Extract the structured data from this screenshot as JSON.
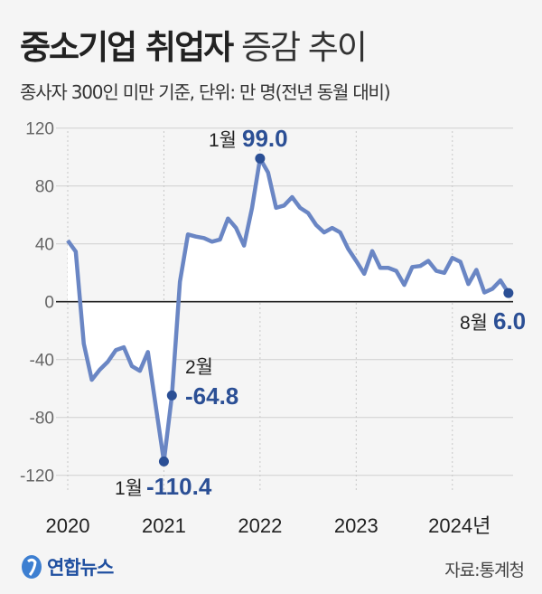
{
  "title_bold": "중소기업 취업자",
  "title_light": "증감 추이",
  "subtitle": "종사자 300인 미만 기준, 단위: 만 명(전년 동월 대비)",
  "source": "자료:통계청",
  "logo_text": "연합뉴스",
  "colors": {
    "line": "#6a86c4",
    "highlight": "#2b4f95",
    "background": "#f5f5f5"
  },
  "chart_data": {
    "type": "line",
    "title": "중소기업 취업자 증감 추이",
    "ylabel": "",
    "xlabel": "",
    "ylim": [
      -120,
      120
    ],
    "yticks": [
      "120",
      "80",
      "40",
      "0",
      "-40",
      "-80",
      "-120"
    ],
    "xticks": [
      "2020",
      "2021",
      "2022",
      "2023",
      "2024년"
    ],
    "grid": true,
    "start": "2020-01",
    "frequency": "monthly",
    "values": [
      42.3,
      34.6,
      -29,
      -54,
      -47,
      -41.5,
      -33.5,
      -31.5,
      -44.5,
      -47.8,
      -34.8,
      -72.7,
      -110.4,
      -64.8,
      13.8,
      46.5,
      45,
      44,
      41.5,
      43,
      57.5,
      51,
      38.8,
      64.8,
      99.0,
      89.3,
      64.9,
      66.5,
      72.3,
      64.9,
      61.3,
      53,
      47.9,
      51,
      47.9,
      36.5,
      28.2,
      19.3,
      35,
      23.4,
      23.4,
      21.3,
      11.6,
      24,
      24.7,
      28.2,
      21.3,
      19.9,
      30.3,
      27.6,
      12.2,
      22,
      6.4,
      8.9,
      14.7,
      6.0
    ],
    "annotations": [
      {
        "month": "1월",
        "value": "99.0",
        "index": 24
      },
      {
        "month": "2월",
        "value": "-64.8",
        "index": 13
      },
      {
        "month": "1월",
        "value": "-110.4",
        "index": 12
      },
      {
        "month": "8월",
        "value": "6.0",
        "index": 55
      }
    ]
  }
}
